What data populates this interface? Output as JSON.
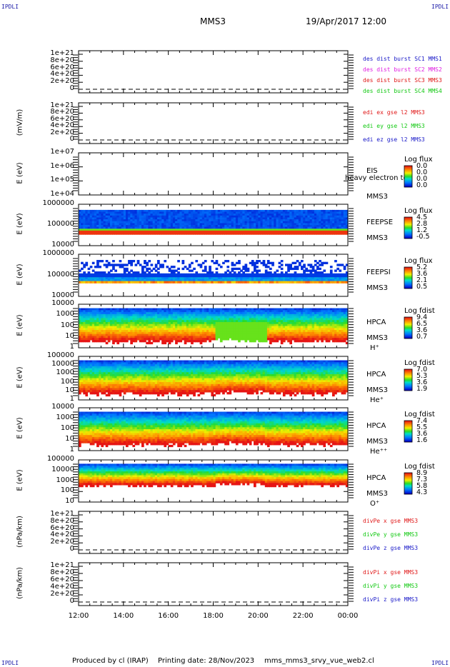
{
  "corners": {
    "tl": "IPDLI",
    "tr": "IPDLI",
    "bl": "IPDLI",
    "br": "IPDLI"
  },
  "header": {
    "spacecraft": "MMS3",
    "datetime": "19/Apr/2017 12:00"
  },
  "footer": {
    "producer": "Produced by cl (IRAP)",
    "printing": "Printing date: 28/Nov/2023",
    "script": "mms_mms3_srvy_vue_web2.cl"
  },
  "colors": {
    "blue": "#1818c8",
    "magenta": "#e020e0",
    "red": "#e01818",
    "green": "#10c810"
  },
  "chart_data": [
    {
      "type": "line",
      "ylabel": "",
      "ylim": [
        0,
        1.2e+21
      ],
      "yticks": [
        "1e+21",
        "8e+20",
        "6e+20",
        "4e+20",
        "2e+20",
        "0"
      ],
      "series": [
        {
          "name": "des dist burst SC1 MMS1",
          "color": "#1818c8",
          "values": [
            0,
            0
          ]
        },
        {
          "name": "des dist burst SC2 MMS2",
          "color": "#e020e0",
          "values": [
            0,
            0
          ]
        },
        {
          "name": "des dist burst SC3 MMS3",
          "color": "#e01818",
          "values": [
            0,
            0
          ]
        },
        {
          "name": "des dist burst SC4 MMS4",
          "color": "#10c810",
          "values": [
            0,
            0
          ]
        }
      ]
    },
    {
      "type": "line",
      "ylabel": "(mV/m)",
      "ylim": [
        0,
        1.2e+21
      ],
      "yticks": [
        "1e+21",
        "8e+20",
        "6e+20",
        "4e+20",
        "2e+20",
        "0"
      ],
      "series": [
        {
          "name": "edi ex gse l2 MMS3",
          "color": "#e01818",
          "values": [
            0,
            0
          ]
        },
        {
          "name": "edi ey gse l2 MMS3",
          "color": "#10c810",
          "values": [
            0,
            0
          ]
        },
        {
          "name": "edi ez gse l2 MMS3",
          "color": "#1818c8",
          "values": [
            0,
            0
          ]
        }
      ]
    },
    {
      "type": "heatmap",
      "ylabel": "E (eV)",
      "yticks": [
        "1e+07",
        "1e+06",
        "1e+05",
        "1e+04"
      ],
      "labels": [
        "EIS",
        "heavy electron to",
        "MMS3"
      ],
      "colorbar": {
        "title": "Log flux",
        "values": [
          "0.0",
          "0.0",
          "0.0",
          "0.0"
        ]
      }
    },
    {
      "type": "heatmap",
      "ylabel": "E (eV)",
      "yticks": [
        "1000000",
        "100000",
        "10000"
      ],
      "labels": [
        "FEEPSE",
        "MMS3"
      ],
      "colorbar": {
        "title": "Log flux",
        "values": [
          "4.5",
          "2.8",
          "1.2",
          "-0.5"
        ]
      }
    },
    {
      "type": "heatmap",
      "ylabel": "E (eV)",
      "yticks": [
        "1000000",
        "100000",
        "10000"
      ],
      "labels": [
        "FEEPSI",
        "MMS3"
      ],
      "colorbar": {
        "title": "Log flux",
        "values": [
          "5.2",
          "3.6",
          "2.1",
          "0.5"
        ]
      }
    },
    {
      "type": "heatmap",
      "ylabel": "E (eV)",
      "yticks": [
        "10000",
        "1000",
        "100",
        "10",
        "1"
      ],
      "labels": [
        "HPCA",
        "MMS3",
        "H⁺"
      ],
      "colorbar": {
        "title": "Log fdist",
        "values": [
          "9.4",
          "6.5",
          "3.6",
          "0.7"
        ]
      }
    },
    {
      "type": "heatmap",
      "ylabel": "E (eV)",
      "yticks": [
        "100000",
        "10000",
        "1000",
        "100",
        "10",
        "1"
      ],
      "labels": [
        "HPCA",
        "MMS3",
        "He⁺"
      ],
      "colorbar": {
        "title": "Log fdist",
        "values": [
          "7.0",
          "5.3",
          "3.6",
          "1.9"
        ]
      }
    },
    {
      "type": "heatmap",
      "ylabel": "E (eV)",
      "yticks": [
        "10000",
        "1000",
        "100",
        "10",
        "1"
      ],
      "labels": [
        "HPCA",
        "MMS3",
        "He⁺⁺"
      ],
      "colorbar": {
        "title": "Log fdist",
        "values": [
          "7.4",
          "5.5",
          "3.6",
          "1.6"
        ]
      }
    },
    {
      "type": "heatmap",
      "ylabel": "E (eV)",
      "yticks": [
        "100000",
        "10000",
        "1000",
        "100",
        "10"
      ],
      "labels": [
        "HPCA",
        "MMS3",
        "O⁺"
      ],
      "colorbar": {
        "title": "Log fdist",
        "values": [
          "8.9",
          "7.3",
          "5.8",
          "4.3"
        ]
      }
    },
    {
      "type": "line",
      "ylabel": "(nPa/km)",
      "ylim": [
        0,
        1.2e+21
      ],
      "yticks": [
        "1e+21",
        "8e+20",
        "6e+20",
        "4e+20",
        "2e+20",
        "0"
      ],
      "series": [
        {
          "name": "divPe x gse MMS3",
          "color": "#e01818",
          "values": [
            0,
            0
          ]
        },
        {
          "name": "divPe y gse MMS3",
          "color": "#10c810",
          "values": [
            0,
            0
          ]
        },
        {
          "name": "divPe z gse MMS3",
          "color": "#1818c8",
          "values": [
            0,
            0
          ]
        }
      ]
    },
    {
      "type": "line",
      "ylabel": "(nPa/km)",
      "ylim": [
        0,
        1.2e+21
      ],
      "yticks": [
        "1e+21",
        "8e+20",
        "6e+20",
        "4e+20",
        "2e+20",
        "0"
      ],
      "series": [
        {
          "name": "divPi x gse MMS3",
          "color": "#e01818",
          "values": [
            0,
            0
          ]
        },
        {
          "name": "divPi y gse MMS3",
          "color": "#10c810",
          "values": [
            0,
            0
          ]
        },
        {
          "name": "divPi z gse MMS3",
          "color": "#1818c8",
          "values": [
            0,
            0
          ]
        }
      ]
    }
  ],
  "x_ticks": [
    "12:00",
    "14:00",
    "16:00",
    "18:00",
    "20:00",
    "22:00",
    "00:00"
  ]
}
